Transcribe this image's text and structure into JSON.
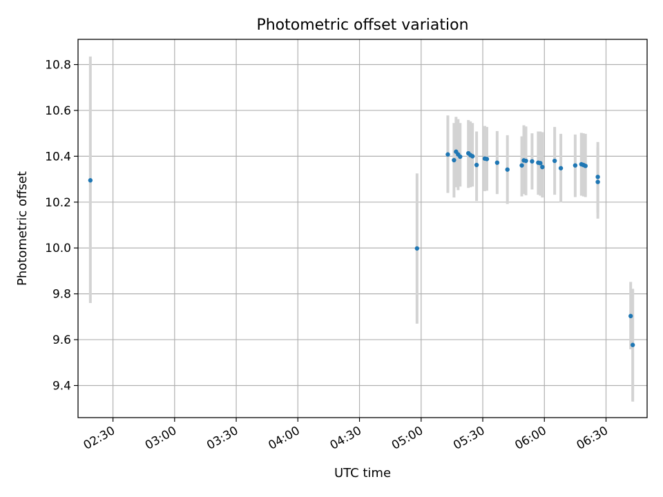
{
  "chart_data": {
    "type": "scatter",
    "title": "Photometric offset variation",
    "xlabel": "UTC time",
    "ylabel": "Photometric offset",
    "x_axis_kind": "time",
    "xlim": [
      "02:13",
      "06:50"
    ],
    "ylim": [
      9.26,
      10.91
    ],
    "xticks": [
      "02:30",
      "03:00",
      "03:30",
      "04:00",
      "04:30",
      "05:00",
      "05:30",
      "06:00",
      "06:30"
    ],
    "yticks": [
      9.4,
      9.6,
      9.8,
      10.0,
      10.2,
      10.4,
      10.6,
      10.8
    ],
    "ytick_labels": [
      "9.4",
      "9.6",
      "9.8",
      "10.0",
      "10.2",
      "10.4",
      "10.6",
      "10.8"
    ],
    "grid": true,
    "marker_color": "#1f77b4",
    "errorbar_color": "#d3d3d3",
    "points": [
      {
        "x": "02:19",
        "y": 10.295,
        "ylow": 9.76,
        "yhigh": 10.835
      },
      {
        "x": "04:58",
        "y": 9.998,
        "ylow": 9.67,
        "yhigh": 10.325
      },
      {
        "x": "05:13",
        "y": 10.408,
        "ylow": 10.24,
        "yhigh": 10.578
      },
      {
        "x": "05:16",
        "y": 10.383,
        "ylow": 10.22,
        "yhigh": 10.545
      },
      {
        "x": "05:17",
        "y": 10.42,
        "ylow": 10.265,
        "yhigh": 10.572
      },
      {
        "x": "05:18",
        "y": 10.408,
        "ylow": 10.252,
        "yhigh": 10.562
      },
      {
        "x": "05:19",
        "y": 10.398,
        "ylow": 10.268,
        "yhigh": 10.545
      },
      {
        "x": "05:23",
        "y": 10.413,
        "ylow": 10.262,
        "yhigh": 10.558
      },
      {
        "x": "05:24",
        "y": 10.405,
        "ylow": 10.265,
        "yhigh": 10.552
      },
      {
        "x": "05:25",
        "y": 10.4,
        "ylow": 10.268,
        "yhigh": 10.545
      },
      {
        "x": "05:27",
        "y": 10.362,
        "ylow": 10.205,
        "yhigh": 10.508
      },
      {
        "x": "05:31",
        "y": 10.39,
        "ylow": 10.248,
        "yhigh": 10.532
      },
      {
        "x": "05:32",
        "y": 10.388,
        "ylow": 10.25,
        "yhigh": 10.528
      },
      {
        "x": "05:37",
        "y": 10.372,
        "ylow": 10.235,
        "yhigh": 10.51
      },
      {
        "x": "05:42",
        "y": 10.342,
        "ylow": 10.192,
        "yhigh": 10.492
      },
      {
        "x": "05:49",
        "y": 10.36,
        "ylow": 10.225,
        "yhigh": 10.487
      },
      {
        "x": "05:50",
        "y": 10.382,
        "ylow": 10.235,
        "yhigh": 10.535
      },
      {
        "x": "05:51",
        "y": 10.38,
        "ylow": 10.23,
        "yhigh": 10.53
      },
      {
        "x": "05:54",
        "y": 10.378,
        "ylow": 10.255,
        "yhigh": 10.5
      },
      {
        "x": "05:57",
        "y": 10.372,
        "ylow": 10.232,
        "yhigh": 10.508
      },
      {
        "x": "05:58",
        "y": 10.37,
        "ylow": 10.228,
        "yhigh": 10.508
      },
      {
        "x": "05:59",
        "y": 10.353,
        "ylow": 10.22,
        "yhigh": 10.505
      },
      {
        "x": "06:05",
        "y": 10.38,
        "ylow": 10.232,
        "yhigh": 10.528
      },
      {
        "x": "06:08",
        "y": 10.348,
        "ylow": 10.198,
        "yhigh": 10.498
      },
      {
        "x": "06:15",
        "y": 10.36,
        "ylow": 10.222,
        "yhigh": 10.495
      },
      {
        "x": "06:18",
        "y": 10.365,
        "ylow": 10.228,
        "yhigh": 10.502
      },
      {
        "x": "06:19",
        "y": 10.362,
        "ylow": 10.225,
        "yhigh": 10.5
      },
      {
        "x": "06:20",
        "y": 10.358,
        "ylow": 10.222,
        "yhigh": 10.498
      },
      {
        "x": "06:26",
        "y": 10.31,
        "ylow": 10.155,
        "yhigh": 10.462
      },
      {
        "x": "06:26",
        "y": 10.288,
        "ylow": 10.128,
        "yhigh": 10.438
      },
      {
        "x": "06:42",
        "y": 9.703,
        "ylow": 9.558,
        "yhigh": 9.852
      },
      {
        "x": "06:43",
        "y": 9.577,
        "ylow": 9.33,
        "yhigh": 9.822
      }
    ]
  }
}
